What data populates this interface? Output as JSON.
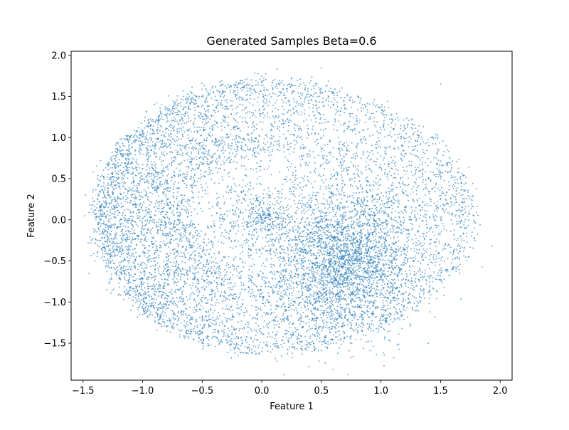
{
  "chart_data": {
    "type": "scatter",
    "title": "Generated Samples Beta=0.6",
    "xlabel": "Feature 1",
    "ylabel": "Feature 2",
    "xlim": [
      -1.6,
      2.1
    ],
    "ylim": [
      -1.95,
      2.05
    ],
    "xticks": [
      -1.5,
      -1.0,
      -0.5,
      0.0,
      0.5,
      1.0,
      1.5,
      2.0
    ],
    "xtick_labels": [
      "−1.5",
      "−1.0",
      "−0.5",
      "0.0",
      "0.5",
      "1.0",
      "1.5",
      "2.0"
    ],
    "yticks": [
      -1.5,
      -1.0,
      -0.5,
      0.0,
      0.5,
      1.0,
      1.5,
      2.0
    ],
    "ytick_labels": [
      "−1.5",
      "−1.0",
      "−0.5",
      "0.0",
      "0.5",
      "1.0",
      "1.5",
      "2.0"
    ],
    "grid": false,
    "legend": "none",
    "marker_color": "#1f77b4",
    "marker_alpha": 0.6,
    "num_points_approx": 10000,
    "distribution": {
      "description": "annular crescent band with dense left arc, plus dense blob on the right",
      "ring_center": [
        0.05,
        0.05
      ],
      "ring_radii": [
        1.42,
        1.7
      ],
      "ring_stretch_right": 0.2,
      "blob_center": [
        0.65,
        -0.5
      ],
      "blob_sigma": [
        0.32,
        0.45
      ],
      "ring_fraction": 0.72,
      "blob_fraction": 0.28
    },
    "sample_points": [
      [
        -1.45,
        -0.65
      ],
      [
        -1.38,
        -0.25
      ],
      [
        -1.35,
        0.0
      ],
      [
        -1.3,
        0.2
      ],
      [
        -1.2,
        0.4
      ],
      [
        -1.05,
        0.6
      ],
      [
        -0.9,
        0.7
      ],
      [
        -0.75,
        0.82
      ],
      [
        -0.5,
        0.9
      ],
      [
        -0.3,
        1.0
      ],
      [
        0.0,
        1.1
      ],
      [
        0.3,
        1.3
      ],
      [
        0.5,
        1.85
      ],
      [
        0.6,
        1.4
      ],
      [
        0.8,
        1.2
      ],
      [
        1.0,
        1.1
      ],
      [
        1.2,
        0.8
      ],
      [
        1.4,
        0.5
      ],
      [
        1.6,
        0.3
      ],
      [
        1.7,
        -0.1
      ],
      [
        1.93,
        -0.32
      ],
      [
        1.8,
        0.38
      ],
      [
        1.5,
        1.65
      ],
      [
        1.3,
        -0.8
      ],
      [
        1.0,
        -1.3
      ],
      [
        0.6,
        -1.4
      ],
      [
        0.3,
        -1.5
      ],
      [
        0.0,
        -1.6
      ],
      [
        -0.2,
        -1.65
      ],
      [
        -0.5,
        -1.5
      ],
      [
        -0.8,
        -1.3
      ],
      [
        -1.1,
        -1.1
      ],
      [
        -1.3,
        -0.85
      ],
      [
        -1.4,
        -0.5
      ],
      [
        0.65,
        -0.5
      ],
      [
        0.55,
        -0.7
      ],
      [
        0.7,
        -0.3
      ],
      [
        0.8,
        -0.9
      ],
      [
        0.45,
        -1.0
      ],
      [
        0.9,
        -0.2
      ]
    ]
  }
}
